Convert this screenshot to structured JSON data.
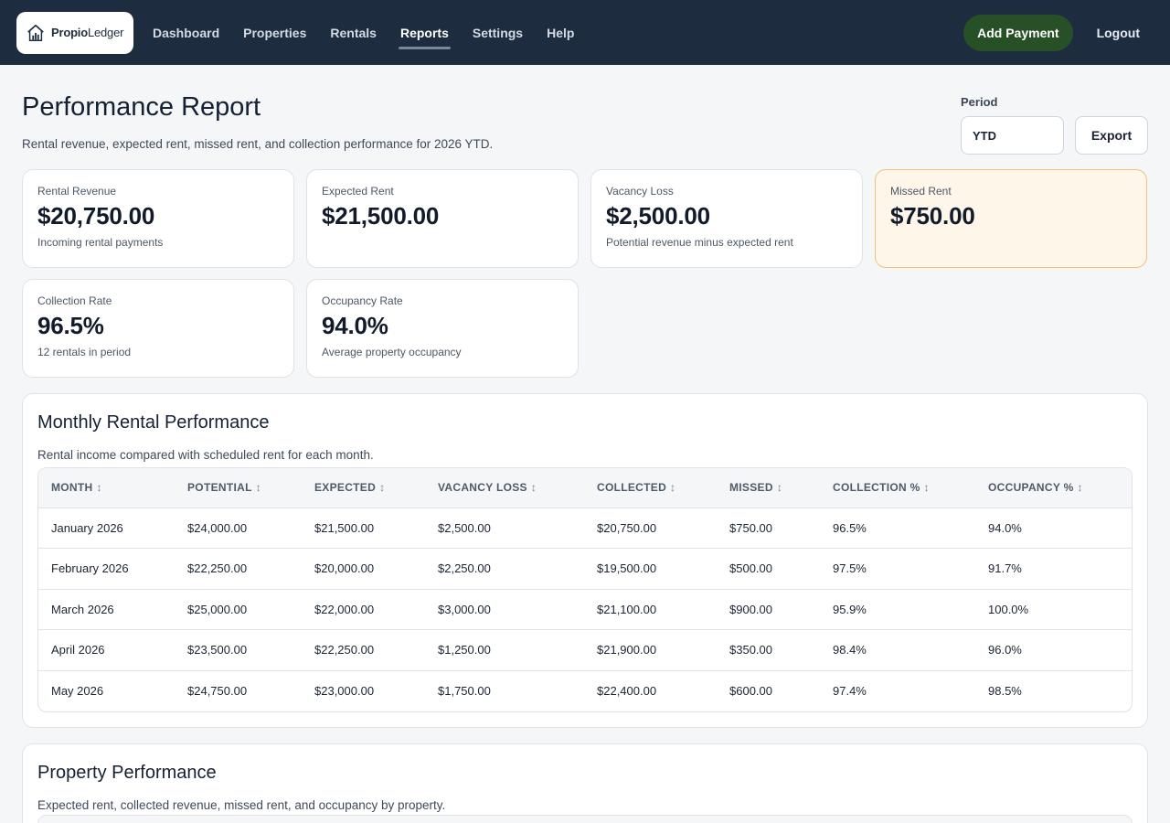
{
  "app": {
    "logo_bold": "Propio",
    "logo_light": "Ledger"
  },
  "nav": {
    "items": [
      {
        "label": "Dashboard",
        "active": false
      },
      {
        "label": "Properties",
        "active": false
      },
      {
        "label": "Rentals",
        "active": false
      },
      {
        "label": "Reports",
        "active": true
      },
      {
        "label": "Settings",
        "active": false
      },
      {
        "label": "Help",
        "active": false
      }
    ],
    "add_payment": "Add Payment",
    "logout": "Logout"
  },
  "header": {
    "title": "Performance Report",
    "subtitle": "Rental revenue, expected rent, missed rent, and collection performance for 2026 YTD.",
    "period_label": "Period",
    "period_value": "YTD",
    "export_label": "Export"
  },
  "cards": [
    {
      "label": "Rental Revenue",
      "value": "$20,750.00",
      "note": "Incoming rental payments",
      "warn": false
    },
    {
      "label": "Expected Rent",
      "value": "$21,500.00",
      "note": "",
      "warn": false
    },
    {
      "label": "Vacancy Loss",
      "value": "$2,500.00",
      "note": "Potential revenue minus expected rent",
      "warn": false
    },
    {
      "label": "Missed Rent",
      "value": "$750.00",
      "note": "",
      "warn": true
    },
    {
      "label": "Collection Rate",
      "value": "96.5%",
      "note": "12 rentals in period",
      "warn": false
    },
    {
      "label": "Occupancy Rate",
      "value": "94.0%",
      "note": "Average property occupancy",
      "warn": false
    }
  ],
  "monthly": {
    "title": "Monthly Rental Performance",
    "subtitle": "Rental income compared with scheduled rent for each month.",
    "columns": [
      "MONTH",
      "POTENTIAL",
      "EXPECTED",
      "VACANCY LOSS",
      "COLLECTED",
      "MISSED",
      "COLLECTION %",
      "OCCUPANCY %"
    ],
    "sort_glyph": "↕",
    "rows": [
      [
        "January 2026",
        "$24,000.00",
        "$21,500.00",
        "$2,500.00",
        "$20,750.00",
        "$750.00",
        "96.5%",
        "94.0%"
      ],
      [
        "February 2026",
        "$22,250.00",
        "$20,000.00",
        "$2,250.00",
        "$19,500.00",
        "$500.00",
        "97.5%",
        "91.7%"
      ],
      [
        "March 2026",
        "$25,000.00",
        "$22,000.00",
        "$3,000.00",
        "$21,100.00",
        "$900.00",
        "95.9%",
        "100.0%"
      ],
      [
        "April 2026",
        "$23,500.00",
        "$22,250.00",
        "$1,250.00",
        "$21,900.00",
        "$350.00",
        "98.4%",
        "96.0%"
      ],
      [
        "May 2026",
        "$24,750.00",
        "$23,000.00",
        "$1,750.00",
        "$22,400.00",
        "$600.00",
        "97.4%",
        "98.5%"
      ]
    ]
  },
  "property": {
    "title": "Property Performance",
    "subtitle": "Expected rent, collected revenue, missed rent, and occupancy by property."
  },
  "colors": {
    "nav_bg": "#1d2d3f",
    "accent_green": "#275026",
    "warn_bg": "#fff6ea",
    "warn_border": "#f0c27a"
  }
}
